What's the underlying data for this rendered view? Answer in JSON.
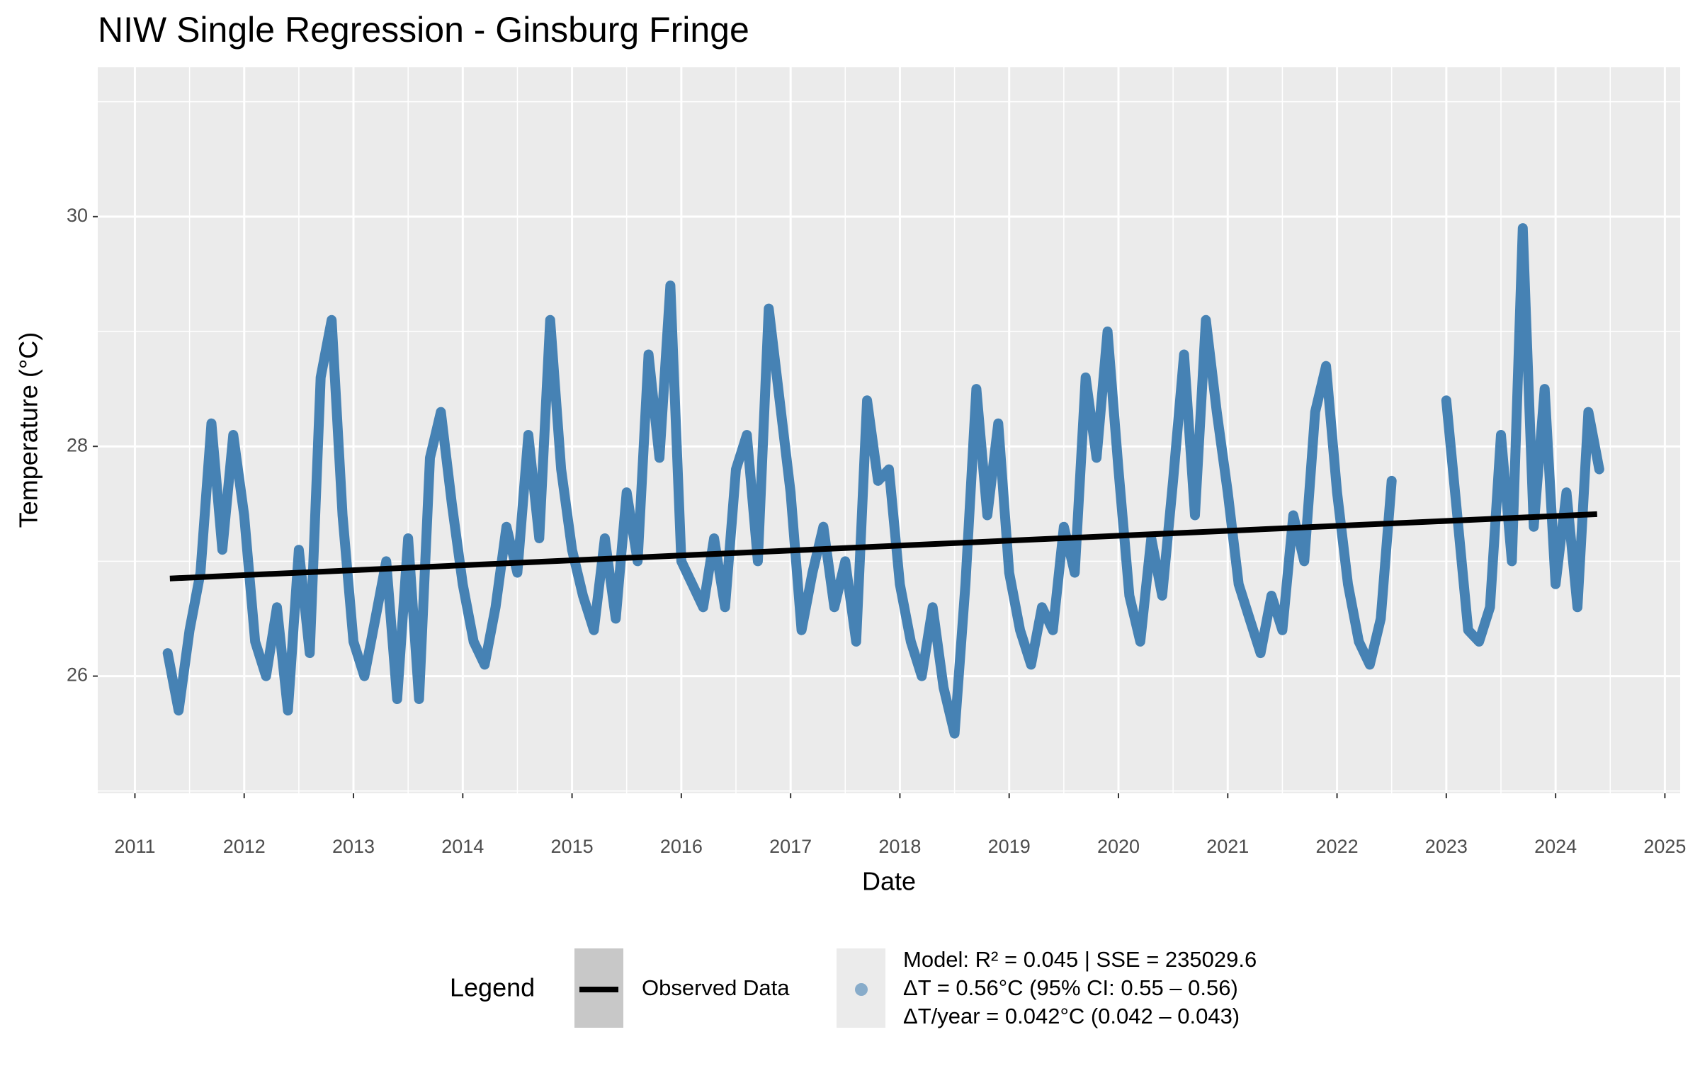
{
  "chart_data": {
    "type": "line",
    "title": "NIW Single Regression - Ginsburg Fringe",
    "x_label": "Date",
    "y_label": "Temperature (°C)",
    "xlim": [
      2010.66,
      2025.14
    ],
    "xticks": [
      2011,
      2012,
      2013,
      2014,
      2015,
      2016,
      2017,
      2018,
      2019,
      2020,
      2021,
      2022,
      2023,
      2024,
      2025
    ],
    "x_minor_ticks": [
      2011.5,
      2012.5,
      2013.5,
      2014.5,
      2015.5,
      2016.5,
      2017.5,
      2018.5,
      2019.5,
      2020.5,
      2021.5,
      2022.5,
      2023.5,
      2024.5
    ],
    "ylim": [
      24.98,
      31.3
    ],
    "yticks": [
      26,
      28,
      30
    ],
    "y_minor_ticks": [
      25,
      27,
      29,
      31
    ],
    "grid": true,
    "legend_title": "Legend",
    "legend_position": "bottom",
    "legend_notes": [
      "ΔT = 0.56°C (95% CI: 0.55 – 0.56)",
      "ΔT/year = 0.042°C (0.042 – 0.043)"
    ],
    "x": [
      2011.3,
      2011.4,
      2011.5,
      2011.6,
      2011.7,
      2011.8,
      2011.9,
      2012.0,
      2012.1,
      2012.2,
      2012.3,
      2012.4,
      2012.5,
      2012.6,
      2012.7,
      2012.8,
      2012.9,
      2013.0,
      2013.1,
      2013.2,
      2013.3,
      2013.4,
      2013.5,
      2013.6,
      2013.7,
      2013.8,
      2013.9,
      2014.0,
      2014.1,
      2014.2,
      2014.3,
      2014.4,
      2014.5,
      2014.6,
      2014.7,
      2014.8,
      2014.9,
      2015.0,
      2015.1,
      2015.2,
      2015.3,
      2015.4,
      2015.5,
      2015.6,
      2015.7,
      2015.8,
      2015.9,
      2016.0,
      2016.1,
      2016.2,
      2016.3,
      2016.4,
      2016.5,
      2016.6,
      2016.7,
      2016.8,
      2016.9,
      2017.0,
      2017.1,
      2017.2,
      2017.3,
      2017.4,
      2017.5,
      2017.6,
      2017.7,
      2017.8,
      2017.9,
      2018.0,
      2018.1,
      2018.2,
      2018.3,
      2018.4,
      2018.5,
      2018.6,
      2018.7,
      2018.8,
      2018.9,
      2019.0,
      2019.1,
      2019.2,
      2019.3,
      2019.4,
      2019.5,
      2019.6,
      2019.7,
      2019.8,
      2019.9,
      2020.0,
      2020.1,
      2020.2,
      2020.3,
      2020.4,
      2020.5,
      2020.6,
      2020.7,
      2020.8,
      2020.9,
      2021.0,
      2021.1,
      2021.2,
      2021.3,
      2021.4,
      2021.5,
      2021.6,
      2021.7,
      2021.8,
      2021.9,
      2022.0,
      2022.1,
      2022.2,
      2022.3,
      2022.4,
      2022.5,
      2022.6,
      2022.7,
      2022.8,
      2022.9,
      2023.0,
      2023.1,
      2023.2,
      2023.3,
      2023.4,
      2023.5,
      2023.6,
      2023.7,
      2023.8,
      2023.9,
      2024.0,
      2024.1,
      2024.2,
      2024.3,
      2024.4
    ],
    "series": [
      {
        "name": "Model: R² = 0.045 | SSE = 235029.6",
        "color": "#4682b4",
        "values": [
          26.2,
          25.7,
          26.4,
          26.9,
          28.2,
          27.1,
          28.1,
          27.4,
          26.3,
          26.0,
          26.6,
          25.7,
          27.1,
          26.2,
          28.6,
          29.1,
          27.4,
          26.3,
          26.0,
          26.5,
          27.0,
          25.8,
          27.2,
          25.8,
          27.9,
          28.3,
          27.5,
          26.8,
          26.3,
          26.1,
          26.6,
          27.3,
          26.9,
          28.1,
          27.2,
          29.1,
          27.8,
          27.1,
          26.7,
          26.4,
          27.2,
          26.5,
          27.6,
          27.0,
          28.8,
          27.9,
          29.4,
          27.0,
          26.8,
          26.6,
          27.2,
          26.6,
          27.8,
          28.1,
          27.0,
          29.2,
          28.4,
          27.6,
          26.4,
          26.9,
          27.3,
          26.6,
          27.0,
          26.3,
          28.4,
          27.7,
          27.8,
          26.8,
          26.3,
          26.0,
          26.6,
          25.9,
          25.5,
          26.8,
          28.5,
          27.4,
          28.2,
          26.9,
          26.4,
          26.1,
          26.6,
          26.4,
          27.3,
          26.9,
          28.6,
          27.9,
          29.0,
          27.8,
          26.7,
          26.3,
          27.2,
          26.7,
          27.7,
          28.8,
          27.4,
          29.1,
          28.3,
          27.6,
          26.8,
          26.5,
          26.2,
          26.7,
          26.4,
          27.4,
          27.0,
          28.3,
          28.7,
          27.6,
          26.8,
          26.3,
          26.1,
          26.5,
          27.7,
          null,
          null,
          null,
          null,
          28.4,
          27.4,
          26.4,
          26.3,
          26.6,
          28.1,
          27.0,
          29.9,
          27.3,
          28.5,
          26.8,
          27.6,
          26.6,
          28.3,
          27.8
        ]
      },
      {
        "name": "Observed Data",
        "color": "#000000",
        "x": [
          2011.32,
          2024.38
        ],
        "values": [
          26.85,
          27.41
        ]
      }
    ]
  }
}
